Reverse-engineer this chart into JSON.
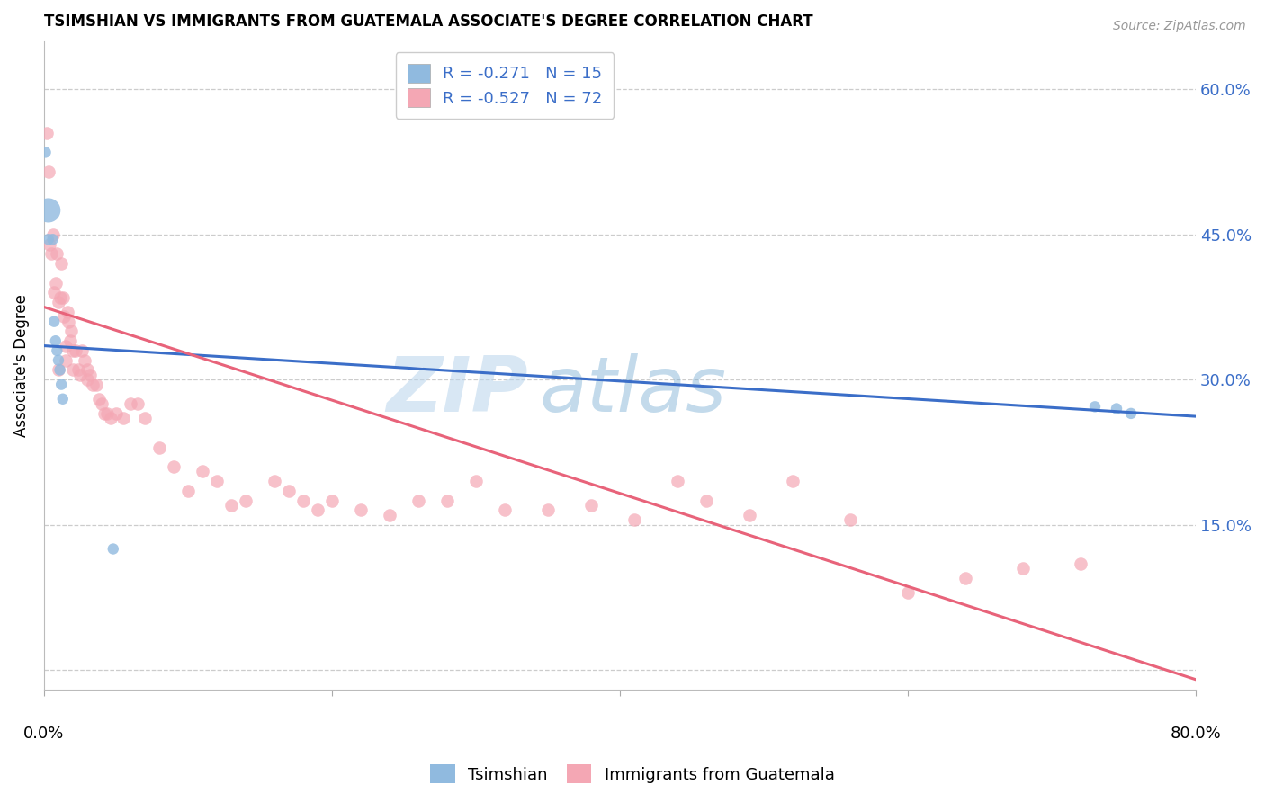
{
  "title": "TSIMSHIAN VS IMMIGRANTS FROM GUATEMALA ASSOCIATE'S DEGREE CORRELATION CHART",
  "source": "Source: ZipAtlas.com",
  "ylabel": "Associate's Degree",
  "yticks": [
    0.0,
    0.15,
    0.3,
    0.45,
    0.6
  ],
  "ytick_labels": [
    "",
    "15.0%",
    "30.0%",
    "45.0%",
    "60.0%"
  ],
  "xlim": [
    0.0,
    0.8
  ],
  "ylim": [
    -0.02,
    0.65
  ],
  "legend_r1": "R = -0.271   N = 15",
  "legend_r2": "R = -0.527   N = 72",
  "blue_color": "#90BADF",
  "pink_color": "#F4A7B4",
  "line_blue": "#3B6EC8",
  "line_pink": "#E8637A",
  "watermark_zip": "ZIP",
  "watermark_atlas": "atlas",
  "blue_line_y0": 0.335,
  "blue_line_y1": 0.262,
  "pink_line_y0": 0.375,
  "pink_line_y1": -0.01,
  "tsimshian_x": [
    0.001,
    0.003,
    0.003,
    0.006,
    0.007,
    0.008,
    0.009,
    0.01,
    0.011,
    0.012,
    0.013,
    0.048,
    0.73,
    0.745,
    0.755
  ],
  "tsimshian_y": [
    0.535,
    0.475,
    0.445,
    0.445,
    0.36,
    0.34,
    0.33,
    0.32,
    0.31,
    0.295,
    0.28,
    0.125,
    0.272,
    0.27,
    0.265
  ],
  "tsimshian_sz": [
    80,
    380,
    80,
    80,
    80,
    80,
    80,
    80,
    80,
    80,
    80,
    80,
    80,
    80,
    80
  ],
  "guatemala_x": [
    0.002,
    0.003,
    0.004,
    0.005,
    0.006,
    0.007,
    0.008,
    0.009,
    0.01,
    0.011,
    0.012,
    0.013,
    0.014,
    0.015,
    0.016,
    0.017,
    0.018,
    0.019,
    0.02,
    0.022,
    0.024,
    0.026,
    0.028,
    0.03,
    0.032,
    0.034,
    0.036,
    0.038,
    0.04,
    0.042,
    0.044,
    0.046,
    0.05,
    0.055,
    0.06,
    0.065,
    0.07,
    0.08,
    0.09,
    0.1,
    0.11,
    0.12,
    0.13,
    0.14,
    0.16,
    0.17,
    0.18,
    0.19,
    0.2,
    0.22,
    0.24,
    0.26,
    0.28,
    0.3,
    0.32,
    0.35,
    0.38,
    0.41,
    0.44,
    0.46,
    0.49,
    0.52,
    0.56,
    0.6,
    0.64,
    0.68,
    0.72,
    0.01,
    0.015,
    0.02,
    0.025,
    0.03
  ],
  "guatemala_y": [
    0.555,
    0.515,
    0.44,
    0.43,
    0.45,
    0.39,
    0.4,
    0.43,
    0.38,
    0.385,
    0.42,
    0.385,
    0.365,
    0.335,
    0.37,
    0.36,
    0.34,
    0.35,
    0.33,
    0.33,
    0.31,
    0.33,
    0.32,
    0.3,
    0.305,
    0.295,
    0.295,
    0.28,
    0.275,
    0.265,
    0.265,
    0.26,
    0.265,
    0.26,
    0.275,
    0.275,
    0.26,
    0.23,
    0.21,
    0.185,
    0.205,
    0.195,
    0.17,
    0.175,
    0.195,
    0.185,
    0.175,
    0.165,
    0.175,
    0.165,
    0.16,
    0.175,
    0.175,
    0.195,
    0.165,
    0.165,
    0.17,
    0.155,
    0.195,
    0.175,
    0.16,
    0.195,
    0.155,
    0.08,
    0.095,
    0.105,
    0.11,
    0.31,
    0.32,
    0.31,
    0.305,
    0.31
  ]
}
